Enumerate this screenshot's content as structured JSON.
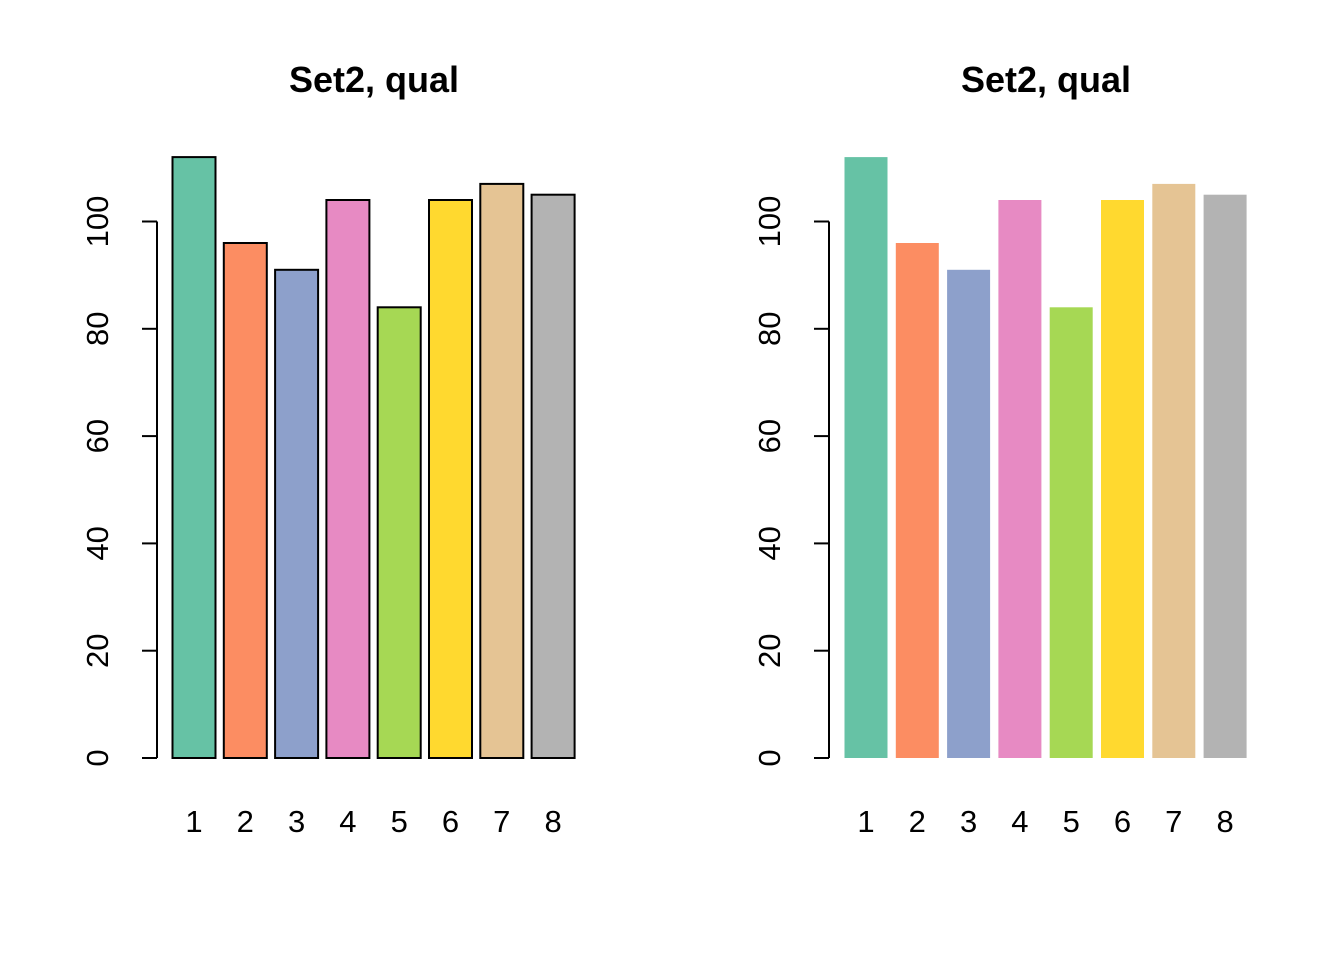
{
  "chart_data": [
    {
      "type": "bar",
      "title": "Set2, qual",
      "categories": [
        "1",
        "2",
        "3",
        "4",
        "5",
        "6",
        "7",
        "8"
      ],
      "values": [
        112,
        96,
        91,
        104,
        84,
        104,
        107,
        105
      ],
      "colors": [
        "#66C2A5",
        "#FC8D62",
        "#8DA0CB",
        "#E78AC3",
        "#A6D854",
        "#FFD92F",
        "#E5C494",
        "#B3B3B3"
      ],
      "bar_border": true,
      "yticks": [
        0,
        20,
        40,
        60,
        80,
        100
      ],
      "xlabel": "",
      "ylabel": "",
      "grid": false
    },
    {
      "type": "bar",
      "title": "Set2, qual",
      "categories": [
        "1",
        "2",
        "3",
        "4",
        "5",
        "6",
        "7",
        "8"
      ],
      "values": [
        112,
        96,
        91,
        104,
        84,
        104,
        107,
        105
      ],
      "colors": [
        "#66C2A5",
        "#FC8D62",
        "#8DA0CB",
        "#E78AC3",
        "#A6D854",
        "#FFD92F",
        "#E5C494",
        "#B3B3B3"
      ],
      "bar_border": false,
      "yticks": [
        0,
        20,
        40,
        60,
        80,
        100
      ],
      "xlabel": "",
      "ylabel": "",
      "grid": false
    }
  ]
}
